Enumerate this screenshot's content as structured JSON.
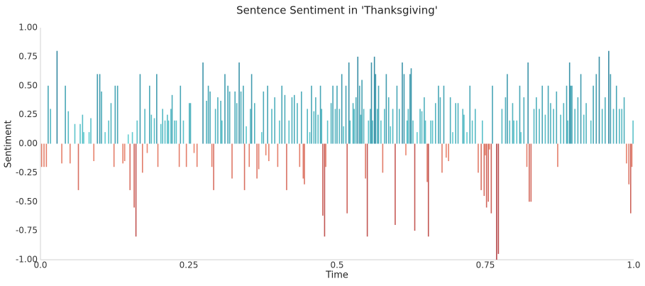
{
  "chart_data": {
    "type": "bar",
    "title": "Sentence Sentiment in 'Thanksgiving'",
    "x_label": "Time",
    "y_label": "Sentiment",
    "xlim": [
      0,
      1
    ],
    "ylim": [
      -1,
      1
    ],
    "xticks": [
      {
        "value": 0,
        "label": "0.0"
      },
      0.25,
      0.5,
      0.75,
      {
        "value": 1,
        "label": "1.0"
      }
    ],
    "yticks": [
      {
        "value": -1,
        "label": "-1.00"
      },
      {
        "value": -0.75,
        "label": "-0.75"
      },
      {
        "value": -0.5,
        "label": "-0.50"
      },
      {
        "value": -0.25,
        "label": "-0.25"
      },
      {
        "value": 0,
        "label": "0.00"
      },
      {
        "value": 0.25,
        "label": "0.25"
      },
      {
        "value": 0.5,
        "label": "0.50"
      },
      {
        "value": 0.75,
        "label": "0.75"
      },
      {
        "value": 1,
        "label": "1.00"
      }
    ],
    "grid": false,
    "positive_colors": [
      "#66d4d6",
      "#2a7795"
    ],
    "negative_colors": [
      "#f08c72",
      "#b5474a"
    ],
    "x": [
      0.002,
      0.006,
      0.01,
      0.013,
      0.017,
      0.028,
      0.036,
      0.042,
      0.047,
      0.05,
      0.058,
      0.064,
      0.067,
      0.071,
      0.073,
      0.082,
      0.085,
      0.09,
      0.096,
      0.1,
      0.103,
      0.109,
      0.115,
      0.119,
      0.124,
      0.126,
      0.13,
      0.139,
      0.142,
      0.148,
      0.151,
      0.155,
      0.158,
      0.161,
      0.163,
      0.168,
      0.172,
      0.176,
      0.18,
      0.184,
      0.187,
      0.192,
      0.196,
      0.198,
      0.203,
      0.206,
      0.21,
      0.214,
      0.216,
      0.22,
      0.222,
      0.226,
      0.229,
      0.234,
      0.236,
      0.241,
      0.246,
      0.251,
      0.253,
      0.259,
      0.264,
      0.274,
      0.28,
      0.283,
      0.286,
      0.289,
      0.292,
      0.295,
      0.299,
      0.304,
      0.306,
      0.311,
      0.316,
      0.319,
      0.323,
      0.328,
      0.331,
      0.335,
      0.338,
      0.342,
      0.344,
      0.347,
      0.352,
      0.354,
      0.356,
      0.361,
      0.365,
      0.368,
      0.373,
      0.376,
      0.38,
      0.383,
      0.385,
      0.39,
      0.395,
      0.4,
      0.403,
      0.407,
      0.412,
      0.415,
      0.419,
      0.424,
      0.428,
      0.433,
      0.437,
      0.44,
      0.443,
      0.445,
      0.45,
      0.454,
      0.457,
      0.461,
      0.464,
      0.468,
      0.472,
      0.474,
      0.476,
      0.479,
      0.481,
      0.484,
      0.49,
      0.493,
      0.497,
      0.5,
      0.504,
      0.508,
      0.511,
      0.515,
      0.517,
      0.52,
      0.522,
      0.527,
      0.529,
      0.532,
      0.535,
      0.538,
      0.54,
      0.542,
      0.545,
      0.548,
      0.551,
      0.553,
      0.556,
      0.558,
      0.56,
      0.563,
      0.565,
      0.568,
      0.57,
      0.574,
      0.577,
      0.58,
      0.583,
      0.587,
      0.59,
      0.594,
      0.598,
      0.601,
      0.605,
      0.61,
      0.613,
      0.616,
      0.618,
      0.62,
      0.623,
      0.625,
      0.628,
      0.631,
      0.635,
      0.64,
      0.643,
      0.647,
      0.649,
      0.652,
      0.654,
      0.658,
      0.661,
      0.666,
      0.671,
      0.674,
      0.677,
      0.68,
      0.684,
      0.688,
      0.691,
      0.695,
      0.7,
      0.704,
      0.712,
      0.714,
      0.719,
      0.724,
      0.728,
      0.733,
      0.738,
      0.743,
      0.745,
      0.748,
      0.75,
      0.752,
      0.755,
      0.757,
      0.76,
      0.762,
      0.769,
      0.772,
      0.778,
      0.784,
      0.787,
      0.791,
      0.796,
      0.798,
      0.803,
      0.808,
      0.81,
      0.815,
      0.82,
      0.822,
      0.824,
      0.827,
      0.832,
      0.836,
      0.841,
      0.846,
      0.851,
      0.856,
      0.86,
      0.865,
      0.87,
      0.872,
      0.877,
      0.882,
      0.887,
      0.889,
      0.892,
      0.894,
      0.896,
      0.901,
      0.906,
      0.911,
      0.916,
      0.92,
      0.928,
      0.932,
      0.937,
      0.942,
      0.947,
      0.952,
      0.958,
      0.961,
      0.966,
      0.971,
      0.976,
      0.98,
      0.984,
      0.988,
      0.992,
      0.995,
      0.997,
      0.999
    ],
    "values": [
      -0.2,
      -0.2,
      -0.2,
      0.5,
      0.3,
      0.8,
      -0.17,
      0.5,
      0.28,
      -0.17,
      0.17,
      -0.4,
      0.17,
      0.25,
      0.1,
      0.1,
      0.22,
      -0.15,
      0.6,
      0.6,
      0.45,
      0.1,
      0.2,
      0.35,
      -0.2,
      0.5,
      0.5,
      -0.17,
      -0.15,
      0.08,
      -0.4,
      0.1,
      -0.55,
      -0.8,
      0.2,
      0.6,
      -0.25,
      0.3,
      -0.08,
      0.5,
      0.25,
      0.22,
      0.6,
      -0.2,
      0.17,
      0.3,
      0.2,
      0.25,
      0.2,
      0.3,
      0.42,
      0.2,
      0.2,
      -0.2,
      0.5,
      0.2,
      -0.2,
      0.35,
      0.35,
      -0.08,
      -0.2,
      0.7,
      0.37,
      0.5,
      0.45,
      -0.2,
      -0.4,
      0.3,
      0.4,
      0.37,
      0.2,
      0.6,
      0.5,
      0.45,
      -0.3,
      0.45,
      0.35,
      0.7,
      0.45,
      0.5,
      -0.4,
      0.15,
      -0.2,
      0.3,
      0.6,
      0.35,
      -0.3,
      -0.22,
      0.1,
      0.45,
      -0.1,
      0.5,
      -0.15,
      0.3,
      0.4,
      -0.2,
      0.2,
      0.5,
      0.42,
      -0.4,
      0.2,
      0.4,
      0.42,
      0.35,
      -0.2,
      0.45,
      -0.3,
      -0.35,
      0.3,
      0.1,
      0.5,
      0.28,
      0.4,
      0.25,
      0.5,
      0.3,
      -0.62,
      -0.8,
      -0.2,
      0.2,
      0.35,
      0.5,
      0.3,
      0.5,
      0.3,
      0.6,
      0.15,
      0.5,
      -0.6,
      0.7,
      0.2,
      0.35,
      0.3,
      0.4,
      0.75,
      0.5,
      0.25,
      0.55,
      0.3,
      -0.3,
      -0.8,
      0.2,
      0.3,
      0.7,
      0.2,
      0.75,
      0.6,
      0.3,
      0.5,
      0.2,
      -0.25,
      0.3,
      0.6,
      0.4,
      0.15,
      0.3,
      -0.7,
      0.5,
      0.3,
      0.7,
      0.6,
      -0.1,
      0.2,
      0.3,
      0.6,
      0.65,
      0.2,
      -0.75,
      0.1,
      0.3,
      0.28,
      0.4,
      0.2,
      -0.33,
      -0.8,
      0.2,
      0.2,
      0.35,
      0.5,
      0.4,
      -0.25,
      0.5,
      -0.12,
      -0.15,
      0.4,
      0.1,
      0.35,
      0.35,
      0.3,
      0.25,
      0.1,
      0.5,
      0.2,
      0.3,
      -0.25,
      -0.4,
      0.2,
      -0.45,
      -0.1,
      -0.55,
      -0.5,
      -0.05,
      -0.6,
      0.5,
      -1.0,
      -0.95,
      0.3,
      0.4,
      0.6,
      0.2,
      0.35,
      0.2,
      0.2,
      0.5,
      0.1,
      0.4,
      -0.2,
      0.7,
      -0.5,
      -0.5,
      0.3,
      0.4,
      0.3,
      0.5,
      0.25,
      0.5,
      0.35,
      0.3,
      0.45,
      -0.2,
      0.25,
      0.35,
      0.5,
      0.2,
      0.7,
      0.5,
      0.5,
      0.3,
      0.4,
      0.6,
      0.25,
      0.35,
      0.2,
      0.5,
      0.6,
      0.75,
      0.3,
      0.4,
      0.8,
      0.6,
      0.3,
      0.5,
      0.3,
      0.3,
      0.4,
      -0.17,
      -0.35,
      -0.6,
      -0.2,
      0.2
    ]
  }
}
